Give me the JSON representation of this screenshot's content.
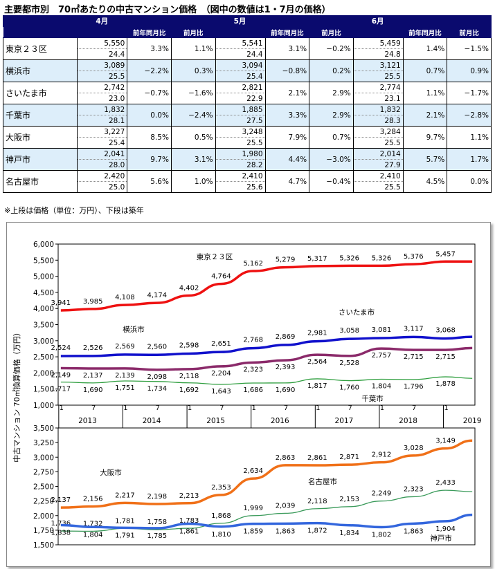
{
  "title": "主要都市別　70㎡あたりの中古マンション価格　（図中の数値は1・7月の価格）",
  "note": "※上段は価格（単位：万円）、下段は築年",
  "table": {
    "months": [
      "4月",
      "5月",
      "6月"
    ],
    "sub_headers": [
      "前年同月比",
      "前月比"
    ],
    "rows": [
      {
        "city": "東京２３区",
        "m": [
          {
            "price": "5,550",
            "age": "24.4",
            "yoy": "3.3%",
            "mom": "1.1%"
          },
          {
            "price": "5,541",
            "age": "24.4",
            "yoy": "3.1%",
            "mom": "−0.2%"
          },
          {
            "price": "5,459",
            "age": "24.8",
            "yoy": "1.4%",
            "mom": "−1.5%"
          }
        ]
      },
      {
        "city": "横浜市",
        "m": [
          {
            "price": "3,089",
            "age": "25.5",
            "yoy": "−2.2%",
            "mom": "0.3%"
          },
          {
            "price": "3,094",
            "age": "25.4",
            "yoy": "−0.8%",
            "mom": "0.2%"
          },
          {
            "price": "3,121",
            "age": "25.5",
            "yoy": "0.7%",
            "mom": "0.9%"
          }
        ]
      },
      {
        "city": "さいたま市",
        "m": [
          {
            "price": "2,742",
            "age": "23.0",
            "yoy": "−0.7%",
            "mom": "−1.6%"
          },
          {
            "price": "2,821",
            "age": "22.9",
            "yoy": "2.1%",
            "mom": "2.9%"
          },
          {
            "price": "2,774",
            "age": "23.1",
            "yoy": "1.1%",
            "mom": "−1.7%"
          }
        ]
      },
      {
        "city": "千葉市",
        "m": [
          {
            "price": "1,832",
            "age": "28.1",
            "yoy": "0.0%",
            "mom": "−2.4%"
          },
          {
            "price": "1,885",
            "age": "27.5",
            "yoy": "3.3%",
            "mom": "2.9%"
          },
          {
            "price": "1,832",
            "age": "28.3",
            "yoy": "2.1%",
            "mom": "−2.8%"
          }
        ]
      },
      {
        "city": "大阪市",
        "m": [
          {
            "price": "3,227",
            "age": "25.4",
            "yoy": "8.5%",
            "mom": "0.5%"
          },
          {
            "price": "3,248",
            "age": "25.5",
            "yoy": "7.9%",
            "mom": "0.7%"
          },
          {
            "price": "3,284",
            "age": "25.5",
            "yoy": "9.7%",
            "mom": "1.1%"
          }
        ]
      },
      {
        "city": "神戸市",
        "m": [
          {
            "price": "2,041",
            "age": "28.0",
            "yoy": "9.7%",
            "mom": "3.1%"
          },
          {
            "price": "1,980",
            "age": "28.2",
            "yoy": "4.4%",
            "mom": "−3.0%"
          },
          {
            "price": "2,014",
            "age": "27.9",
            "yoy": "5.7%",
            "mom": "1.7%"
          }
        ]
      },
      {
        "city": "名古屋市",
        "m": [
          {
            "price": "2,420",
            "age": "25.0",
            "yoy": "5.6%",
            "mom": "1.0%"
          },
          {
            "price": "2,410",
            "age": "25.6",
            "yoy": "4.7%",
            "mom": "−0.4%"
          },
          {
            "price": "2,410",
            "age": "25.5",
            "yoy": "4.5%",
            "mom": "0.0%"
          }
        ]
      }
    ]
  },
  "chart_data": [
    {
      "type": "line",
      "ylabel": "中古マンション 70㎡換算価格（万円）",
      "ylim": [
        1000,
        6000
      ],
      "yticks": [
        "1,000",
        "1,500",
        "2,000",
        "2,500",
        "3,000",
        "3,500",
        "4,000",
        "4,500",
        "5,000",
        "5,500",
        "6,000"
      ],
      "x_axis": {
        "month_labels": [
          "1",
          "7",
          "1",
          "7",
          "1",
          "7",
          "1",
          "7",
          "1",
          "7",
          "1",
          "7",
          "1"
        ],
        "year_labels": [
          "2013",
          "2014",
          "2015",
          "2016",
          "2017",
          "2018",
          "2019"
        ]
      },
      "series": [
        {
          "name": "東京２３区",
          "color": "#ee1111",
          "points": [
            [
              "2013-01",
              3941
            ],
            [
              "2013-07",
              3985
            ],
            [
              "2014-01",
              4108
            ],
            [
              "2014-07",
              4174
            ],
            [
              "2015-01",
              4402
            ],
            [
              "2015-07",
              4764
            ],
            [
              "2016-01",
              5162
            ],
            [
              "2016-07",
              5279
            ],
            [
              "2017-01",
              5317
            ],
            [
              "2017-07",
              5326
            ],
            [
              "2018-01",
              5326
            ],
            [
              "2018-07",
              5376
            ],
            [
              "2019-01",
              5457
            ],
            [
              "2019-06",
              5459
            ]
          ]
        },
        {
          "name": "横浜市",
          "color": "#1111cc",
          "points": [
            [
              "2013-01",
              2524
            ],
            [
              "2013-07",
              2526
            ],
            [
              "2014-01",
              2569
            ],
            [
              "2014-07",
              2560
            ],
            [
              "2015-01",
              2598
            ],
            [
              "2015-07",
              2651
            ],
            [
              "2016-01",
              2768
            ],
            [
              "2016-07",
              2869
            ],
            [
              "2017-01",
              2981
            ],
            [
              "2017-07",
              3058
            ],
            [
              "2018-01",
              3081
            ],
            [
              "2018-07",
              3117
            ],
            [
              "2019-01",
              3068
            ],
            [
              "2019-06",
              3121
            ]
          ]
        },
        {
          "name": "さいたま市",
          "color": "#8b2a6a",
          "points": [
            [
              "2013-01",
              2149
            ],
            [
              "2013-07",
              2137
            ],
            [
              "2014-01",
              2139
            ],
            [
              "2014-07",
              2098
            ],
            [
              "2015-01",
              2118
            ],
            [
              "2015-07",
              2204
            ],
            [
              "2016-01",
              2323
            ],
            [
              "2016-07",
              2393
            ],
            [
              "2017-01",
              2564
            ],
            [
              "2017-07",
              2528
            ],
            [
              "2018-01",
              2757
            ],
            [
              "2018-07",
              2715
            ],
            [
              "2019-01",
              2715
            ],
            [
              "2019-06",
              2774
            ]
          ]
        },
        {
          "name": "千葉市",
          "color": "#2e9e3e",
          "points": [
            [
              "2013-01",
              1717
            ],
            [
              "2013-07",
              1690
            ],
            [
              "2014-01",
              1751
            ],
            [
              "2014-07",
              1734
            ],
            [
              "2015-01",
              1692
            ],
            [
              "2015-07",
              1643
            ],
            [
              "2016-01",
              1686
            ],
            [
              "2016-07",
              1690
            ],
            [
              "2017-01",
              1817
            ],
            [
              "2017-07",
              1760
            ],
            [
              "2018-01",
              1804
            ],
            [
              "2018-07",
              1796
            ],
            [
              "2019-01",
              1878
            ],
            [
              "2019-06",
              1832
            ]
          ]
        }
      ]
    },
    {
      "type": "line",
      "ylim": [
        1500,
        3500
      ],
      "yticks": [
        "1,500",
        "1,750",
        "2,000",
        "2,250",
        "2,500",
        "2,750",
        "3,000",
        "3,250",
        "3,500"
      ],
      "series": [
        {
          "name": "大阪市",
          "color": "#f07018",
          "points": [
            [
              "2013-01",
              2137
            ],
            [
              "2013-07",
              2156
            ],
            [
              "2014-01",
              2217
            ],
            [
              "2014-07",
              2198
            ],
            [
              "2015-01",
              2213
            ],
            [
              "2015-07",
              2353
            ],
            [
              "2016-01",
              2634
            ],
            [
              "2016-07",
              2863
            ],
            [
              "2017-01",
              2861
            ],
            [
              "2017-07",
              2871
            ],
            [
              "2018-01",
              2912
            ],
            [
              "2018-07",
              3028
            ],
            [
              "2019-01",
              3149
            ],
            [
              "2019-06",
              3284
            ]
          ]
        },
        {
          "name": "名古屋市",
          "color": "#3a9a5a",
          "points": [
            [
              "2013-01",
              1736
            ],
            [
              "2013-07",
              1732
            ],
            [
              "2014-01",
              1781
            ],
            [
              "2014-07",
              1758
            ],
            [
              "2015-01",
              1783
            ],
            [
              "2015-07",
              1868
            ],
            [
              "2016-01",
              1999
            ],
            [
              "2016-07",
              2039
            ],
            [
              "2017-01",
              2118
            ],
            [
              "2017-07",
              2153
            ],
            [
              "2018-01",
              2249
            ],
            [
              "2018-07",
              2323
            ],
            [
              "2019-01",
              2433
            ],
            [
              "2019-06",
              2410
            ]
          ]
        },
        {
          "name": "神戸市",
          "color": "#3366dd",
          "points": [
            [
              "2013-01",
              1838
            ],
            [
              "2013-07",
              1804
            ],
            [
              "2014-01",
              1791
            ],
            [
              "2014-07",
              1785
            ],
            [
              "2015-01",
              1861
            ],
            [
              "2015-07",
              1810
            ],
            [
              "2016-01",
              1859
            ],
            [
              "2016-07",
              1863
            ],
            [
              "2017-01",
              1872
            ],
            [
              "2017-07",
              1834
            ],
            [
              "2018-01",
              1802
            ],
            [
              "2018-07",
              1863
            ],
            [
              "2019-01",
              1904
            ],
            [
              "2019-06",
              2014
            ]
          ]
        }
      ]
    }
  ]
}
